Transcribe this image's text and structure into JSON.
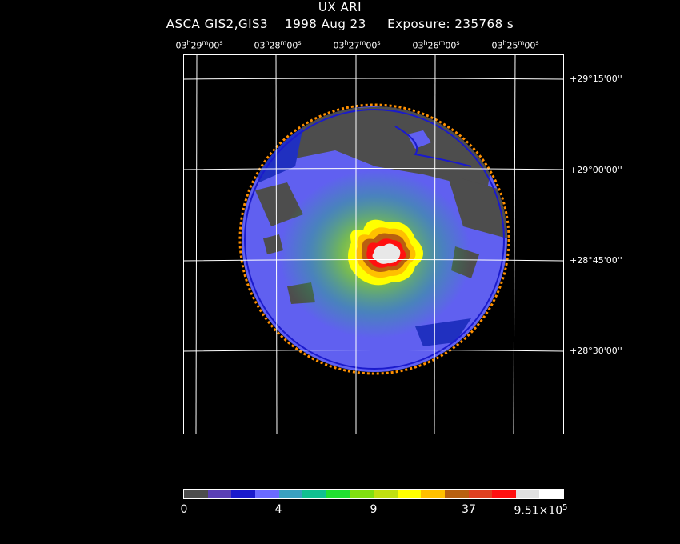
{
  "title": "UX ARI",
  "subtitle": {
    "instrument": "ASCA GIS2,GIS3",
    "date": "1998 Aug 23",
    "exposure": "Exposure: 235768 s"
  },
  "ra_labels": [
    {
      "h": "03",
      "m": "29",
      "s": "00"
    },
    {
      "h": "03",
      "m": "28",
      "s": "00"
    },
    {
      "h": "03",
      "m": "27",
      "s": "00"
    },
    {
      "h": "03",
      "m": "26",
      "s": "00"
    },
    {
      "h": "03",
      "m": "25",
      "s": "00"
    }
  ],
  "dec_labels": [
    {
      "deg": "+29",
      "min": "15",
      "sec": "00"
    },
    {
      "deg": "+29",
      "min": "00",
      "sec": "00"
    },
    {
      "deg": "+28",
      "min": "45",
      "sec": "00"
    },
    {
      "deg": "+28",
      "min": "30",
      "sec": "00"
    }
  ],
  "colorbar": {
    "colors": [
      "#4d4d4d",
      "#5a3fb5",
      "#1a1acc",
      "#6a6aff",
      "#3aa0c0",
      "#10c090",
      "#20e030",
      "#80e010",
      "#c0e010",
      "#ffff00",
      "#ffc000",
      "#b86010",
      "#e04020",
      "#ff1010",
      "#e0e0e0",
      "#ffffff"
    ],
    "labels": [
      {
        "text": "0"
      },
      {
        "text": "4"
      },
      {
        "text": "9"
      },
      {
        "text": "37"
      },
      {
        "mant": "9.51×10",
        "exp": "5"
      }
    ]
  }
}
